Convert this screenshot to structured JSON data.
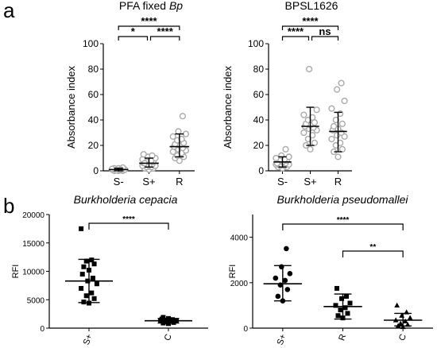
{
  "figure": {
    "panel_a_label": "a",
    "panel_b_label": "b"
  },
  "chart_data": [
    {
      "type": "scatter",
      "title_plain": "PFA fixed ",
      "title_italic": "Bp",
      "ylabel": "Absorbance index",
      "ylim": [
        0,
        100
      ],
      "yticks": [
        0,
        20,
        40,
        60,
        80,
        100
      ],
      "categories": [
        "S-",
        "S+",
        "R"
      ],
      "marker": "open-circle",
      "marker_color": "#aaaaaa",
      "summary": [
        {
          "category": "S-",
          "mean": 1,
          "sd_low": 0,
          "sd_high": 2
        },
        {
          "category": "S+",
          "mean": 6,
          "sd_low": 3,
          "sd_high": 10
        },
        {
          "category": "R",
          "mean": 19,
          "sd_low": 11,
          "sd_high": 29
        }
      ],
      "points": {
        "S-": [
          0,
          0,
          0,
          0.5,
          0.5,
          1,
          1,
          1,
          1.5,
          1.5,
          2,
          2,
          2.5,
          0.5,
          1,
          1.5
        ],
        "S+": [
          1,
          2,
          2,
          3,
          3,
          4,
          4,
          5,
          5,
          6,
          6,
          7,
          7,
          8,
          8,
          9,
          10,
          11,
          12,
          13,
          4,
          6
        ],
        "R": [
          8,
          10,
          11,
          12,
          14,
          15,
          16,
          17,
          18,
          19,
          20,
          21,
          22,
          24,
          25,
          27,
          29,
          31,
          43
        ]
      },
      "significance": [
        {
          "from": 0,
          "to": 1,
          "level": 2,
          "label": "*"
        },
        {
          "from": 1,
          "to": 2,
          "level": 2,
          "label": "****"
        },
        {
          "from": 0,
          "to": 2,
          "level": 1,
          "label": "****"
        }
      ]
    },
    {
      "type": "scatter",
      "title_plain": "BPSL1626",
      "title_italic": "",
      "ylabel": "Absorbance index",
      "ylim": [
        0,
        100
      ],
      "yticks": [
        0,
        20,
        40,
        60,
        80,
        100
      ],
      "categories": [
        "S-",
        "S+",
        "R"
      ],
      "marker": "open-circle",
      "marker_color": "#aaaaaa",
      "summary": [
        {
          "category": "S-",
          "mean": 7,
          "sd_low": 3,
          "sd_high": 11
        },
        {
          "category": "S+",
          "mean": 35,
          "sd_low": 20,
          "sd_high": 50
        },
        {
          "category": "R",
          "mean": 31,
          "sd_low": 15,
          "sd_high": 46
        }
      ],
      "points": {
        "S-": [
          2,
          3,
          3,
          4,
          4,
          5,
          5,
          5,
          6,
          6,
          7,
          7,
          8,
          8,
          9,
          10,
          11,
          12,
          17,
          6
        ],
        "S+": [
          17,
          20,
          22,
          25,
          28,
          30,
          32,
          33,
          34,
          35,
          36,
          37,
          38,
          40,
          42,
          44,
          48,
          80
        ],
        "R": [
          11,
          15,
          17,
          20,
          22,
          25,
          27,
          28,
          30,
          32,
          33,
          35,
          37,
          40,
          45,
          49,
          55,
          64,
          69
        ]
      },
      "significance": [
        {
          "from": 0,
          "to": 1,
          "level": 2,
          "label": "****"
        },
        {
          "from": 1,
          "to": 2,
          "level": 2,
          "label": "ns"
        },
        {
          "from": 0,
          "to": 2,
          "level": 1,
          "label": "****"
        }
      ]
    },
    {
      "type": "scatter",
      "title_plain": "",
      "title_italic": "Burkholderia cepacia",
      "ylabel": "RFI",
      "ylim": [
        0,
        20000
      ],
      "yticks": [
        0,
        5000,
        10000,
        15000,
        20000
      ],
      "categories": [
        "S+",
        "C"
      ],
      "marker": "filled-square",
      "marker_color": "#000000",
      "summary": [
        {
          "category": "S+",
          "mean": 8300,
          "sd_low": 4500,
          "sd_high": 12100
        },
        {
          "category": "C",
          "mean": 1300,
          "sd_low": 900,
          "sd_high": 1700
        }
      ],
      "points": {
        "S+": [
          4400,
          4600,
          5200,
          5700,
          6200,
          7000,
          7800,
          8300,
          8800,
          9500,
          10200,
          10800,
          11300,
          11800,
          12000,
          17500
        ],
        "C": [
          800,
          900,
          1000,
          1100,
          1200,
          1300,
          1300,
          1400,
          1500,
          1600,
          1700,
          1900
        ]
      },
      "significance": [
        {
          "from": 0,
          "to": 1,
          "level": 1,
          "label": "****"
        }
      ]
    },
    {
      "type": "scatter",
      "title_plain": "",
      "title_italic": "Burkholderia pseudomallei",
      "ylabel": "RFI",
      "ylim": [
        0,
        5000
      ],
      "yticks": [
        0,
        2000,
        4000
      ],
      "categories": [
        "S+",
        "R",
        "C"
      ],
      "markers": [
        "filled-circle",
        "filled-square",
        "filled-triangle"
      ],
      "marker_color": "#000000",
      "summary": [
        {
          "category": "S+",
          "mean": 1950,
          "sd_low": 1200,
          "sd_high": 2750
        },
        {
          "category": "R",
          "mean": 950,
          "sd_low": 400,
          "sd_high": 1500
        },
        {
          "category": "C",
          "mean": 350,
          "sd_low": 100,
          "sd_high": 650
        }
      ],
      "points": {
        "S+": [
          1200,
          1400,
          1700,
          1900,
          2100,
          2200,
          2400,
          2700,
          3500
        ],
        "R": [
          450,
          550,
          650,
          800,
          900,
          1000,
          1100,
          1300,
          1400,
          1750
        ],
        "C": [
          50,
          100,
          150,
          200,
          300,
          350,
          450,
          550,
          700,
          1000
        ]
      },
      "significance": [
        {
          "from": 1,
          "to": 2,
          "level": 2,
          "label": "**"
        },
        {
          "from": 0,
          "to": 2,
          "level": 1,
          "label": "****"
        }
      ]
    }
  ]
}
